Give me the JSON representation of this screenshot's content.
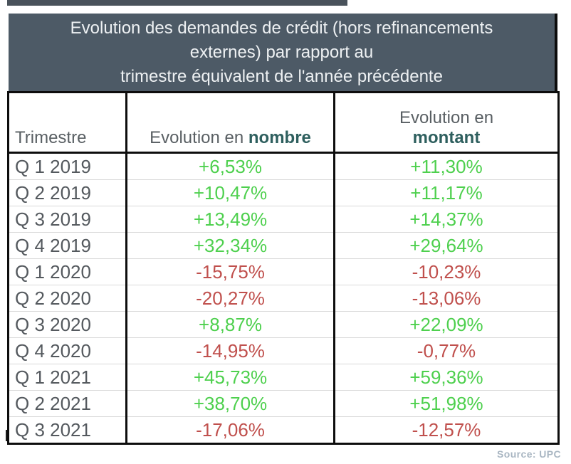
{
  "title_box": {
    "lines": [
      "Evolution des demandes de crédit (hors refinancements",
      "externes) par rapport au",
      "trimestre équivalent de l'année précédente"
    ]
  },
  "table": {
    "headers": {
      "col1": "Trimestre",
      "col2_prefix": "Evolution en ",
      "col2_bold": "nombre",
      "col3_prefix": "Evolution en",
      "col3_bold": "montant"
    },
    "rows": [
      {
        "quarter": "Q 1 2019",
        "nombre": "+6,53%",
        "montant": "+11,30%"
      },
      {
        "quarter": "Q 2 2019",
        "nombre": "+10,47%",
        "montant": "+11,17%"
      },
      {
        "quarter": "Q 3 2019",
        "nombre": "+13,49%",
        "montant": "+14,37%"
      },
      {
        "quarter": "Q 4 2019",
        "nombre": "+32,34%",
        "montant": "+29,64%"
      },
      {
        "quarter": "Q 1 2020",
        "nombre": "-15,75%",
        "montant": "-10,23%"
      },
      {
        "quarter": "Q 2 2020",
        "nombre": "-20,27%",
        "montant": "-13,06%"
      },
      {
        "quarter": "Q 3 2020",
        "nombre": "+8,87%",
        "montant": "+22,09%"
      },
      {
        "quarter": "Q 4 2020",
        "nombre": "-14,95%",
        "montant": "-0,77%"
      },
      {
        "quarter": "Q 1 2021",
        "nombre": "+45,73%",
        "montant": "+59,36%"
      },
      {
        "quarter": "Q 2 2021",
        "nombre": "+38,70%",
        "montant": "+51,98%"
      },
      {
        "quarter": "Q 3 2021",
        "nombre": "-17,06%",
        "montant": "-12,57%"
      }
    ]
  },
  "source_label": "Source: UPC",
  "colors": {
    "positive": "#4ed04e",
    "negative": "#c0504d",
    "title_bg": "#4d5a66",
    "title_fg": "#eef1f3",
    "top_strip": "#49525b",
    "header_text": "#595f63",
    "header_bold_teal": "#2e5f5e",
    "row_label": "#54595e",
    "source_text": "#a9b6c2"
  },
  "chart_data": {
    "type": "table",
    "title": "Evolution des demandes de crédit (hors refinancements externes) par rapport au trimestre équivalent de l'année précédente",
    "columns": [
      "Trimestre",
      "Evolution en nombre",
      "Evolution en montant"
    ],
    "rows": [
      [
        "Q 1 2019",
        "+6,53%",
        "+11,30%"
      ],
      [
        "Q 2 2019",
        "+10,47%",
        "+11,17%"
      ],
      [
        "Q 3 2019",
        "+13,49%",
        "+14,37%"
      ],
      [
        "Q 4 2019",
        "+32,34%",
        "+29,64%"
      ],
      [
        "Q 1 2020",
        "-15,75%",
        "-10,23%"
      ],
      [
        "Q 2 2020",
        "-20,27%",
        "-13,06%"
      ],
      [
        "Q 3 2020",
        "+8,87%",
        "+22,09%"
      ],
      [
        "Q 4 2020",
        "-14,95%",
        "-0,77%"
      ],
      [
        "Q 1 2021",
        "+45,73%",
        "+59,36%"
      ],
      [
        "Q 2 2021",
        "+38,70%",
        "+51,98%"
      ],
      [
        "Q 3 2021",
        "-17,06%",
        "-12,57%"
      ]
    ],
    "values_numeric": {
      "evolution_nombre_pct": [
        6.53,
        10.47,
        13.49,
        32.34,
        -15.75,
        -20.27,
        8.87,
        -14.95,
        45.73,
        38.7,
        -17.06
      ],
      "evolution_montant_pct": [
        11.3,
        11.17,
        14.37,
        29.64,
        -10.23,
        -13.06,
        22.09,
        -0.77,
        59.36,
        51.98,
        -12.57
      ]
    },
    "value_color_rule": "positive values green, negative values red",
    "source": "Source: UPC"
  }
}
